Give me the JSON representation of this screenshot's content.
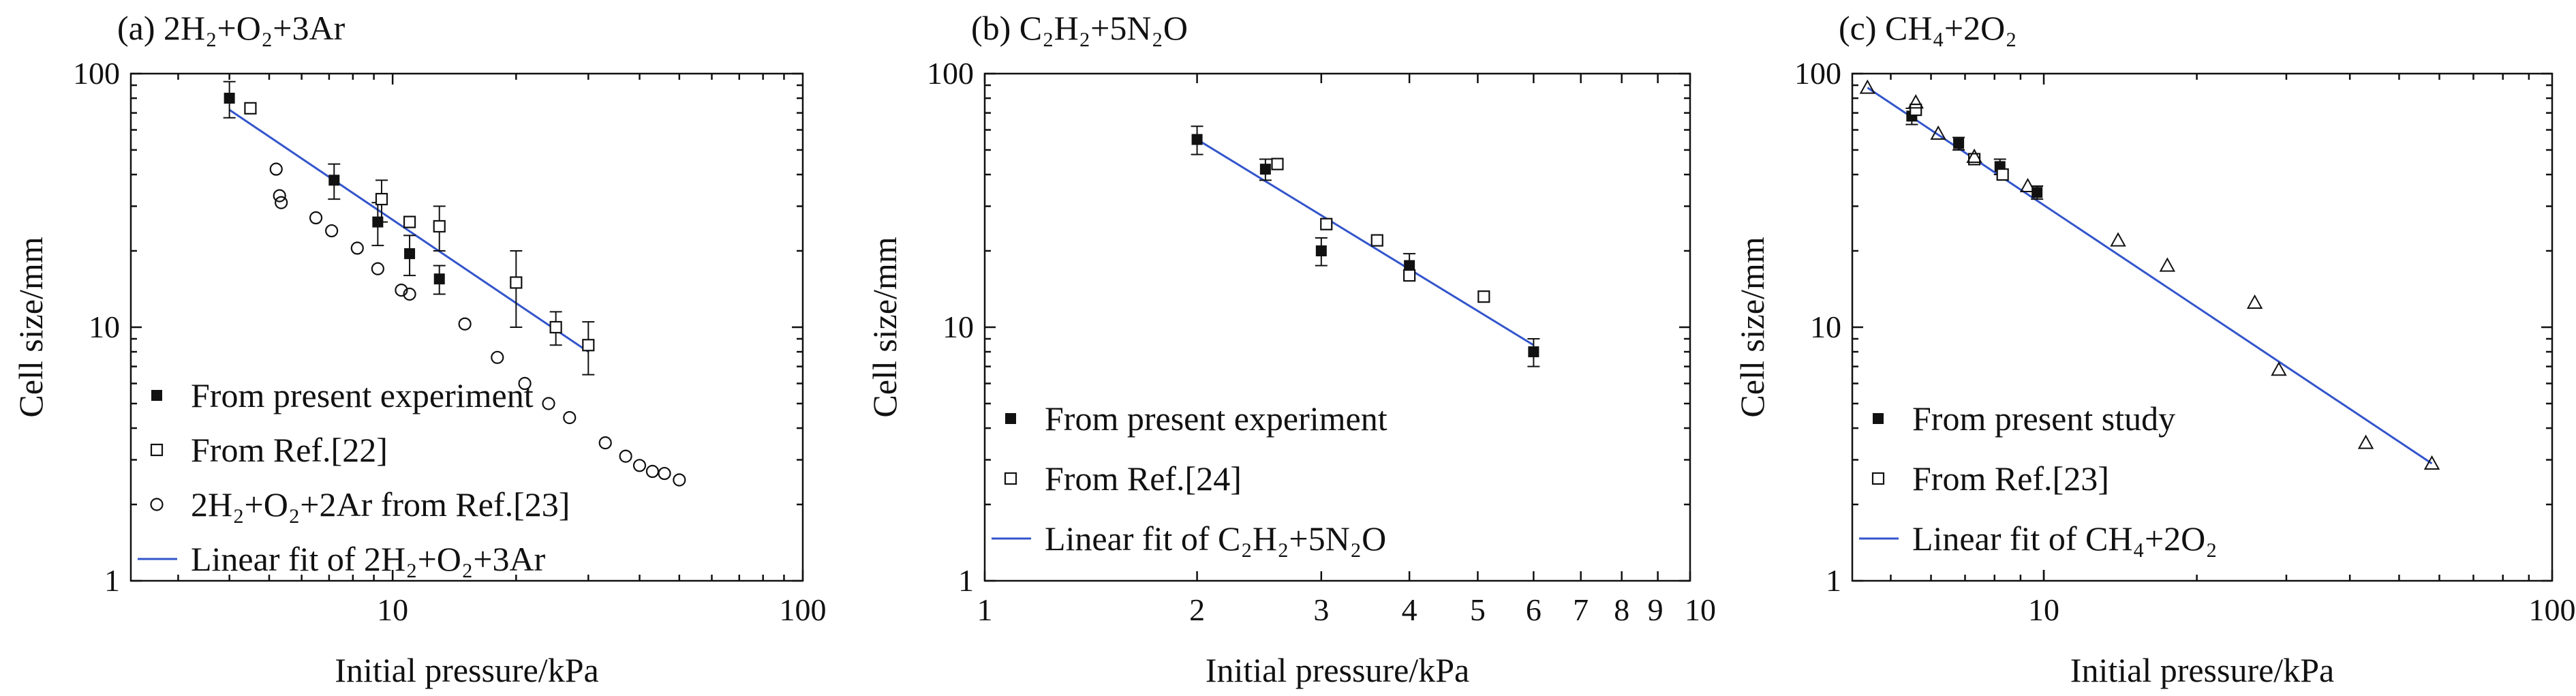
{
  "colors": {
    "fit_line": "#3355cc",
    "markers": "#111111"
  },
  "chart_data": [
    {
      "id": "a",
      "type": "scatter",
      "title": "(a) 2H₂+O₂+3Ar",
      "xlabel": "Initial pressure/kPa",
      "ylabel": "Cell size/mm",
      "xscale": "log",
      "yscale": "log",
      "xlim": [
        2.3,
        100
      ],
      "ylim": [
        1,
        100
      ],
      "x_ticks": [
        10,
        100
      ],
      "x_tick_labels": [
        "10",
        "100"
      ],
      "y_ticks": [
        1,
        10,
        100
      ],
      "y_tick_labels": [
        "1",
        "10",
        "100"
      ],
      "legend_position": "bottom-left",
      "series": [
        {
          "name": "From present experiment",
          "marker": "filled-square",
          "points": [
            {
              "x": 4,
              "y": 80,
              "err": 13
            },
            {
              "x": 7.2,
              "y": 38,
              "err": 6
            },
            {
              "x": 9.2,
              "y": 26,
              "err": 5
            },
            {
              "x": 11,
              "y": 19.5,
              "err": 3.5
            },
            {
              "x": 13,
              "y": 15.5,
              "err": 2
            }
          ]
        },
        {
          "name": "From Ref.[22]",
          "marker": "open-square",
          "points": [
            {
              "x": 4.5,
              "y": 73,
              "err": 0
            },
            {
              "x": 9.4,
              "y": 32,
              "err": 6
            },
            {
              "x": 11,
              "y": 26,
              "err": 0
            },
            {
              "x": 13,
              "y": 25,
              "err": 5
            },
            {
              "x": 20,
              "y": 15,
              "err": 5
            },
            {
              "x": 25,
              "y": 10,
              "err": 1.5
            },
            {
              "x": 30,
              "y": 8.5,
              "err": 2
            }
          ]
        },
        {
          "name": "2H₂+O₂+2Ar from Ref.[23]",
          "marker": "open-circle",
          "points": [
            {
              "x": 5.2,
              "y": 42
            },
            {
              "x": 5.3,
              "y": 33
            },
            {
              "x": 5.35,
              "y": 31
            },
            {
              "x": 6.5,
              "y": 27
            },
            {
              "x": 7.1,
              "y": 24
            },
            {
              "x": 8.2,
              "y": 20.5
            },
            {
              "x": 9.2,
              "y": 17
            },
            {
              "x": 10.5,
              "y": 14
            },
            {
              "x": 11,
              "y": 13.5
            },
            {
              "x": 15,
              "y": 10.3
            },
            {
              "x": 18,
              "y": 7.6
            },
            {
              "x": 21,
              "y": 6
            },
            {
              "x": 24,
              "y": 5
            },
            {
              "x": 27,
              "y": 4.4
            },
            {
              "x": 33,
              "y": 3.5
            },
            {
              "x": 37,
              "y": 3.1
            },
            {
              "x": 40,
              "y": 2.85
            },
            {
              "x": 43,
              "y": 2.7
            },
            {
              "x": 46,
              "y": 2.65
            },
            {
              "x": 50,
              "y": 2.5
            }
          ]
        }
      ],
      "fit": {
        "name": "Linear fit of 2H₂+O₂+3Ar",
        "x0": 4,
        "y0": 72,
        "x1": 30,
        "y1": 8
      }
    },
    {
      "id": "b",
      "type": "scatter",
      "title": "(b) C₂H₂+5N₂O",
      "xlabel": "Initial pressure/kPa",
      "ylabel": "Cell size/mm",
      "xscale": "log",
      "yscale": "log",
      "xlim": [
        1,
        10
      ],
      "ylim": [
        1,
        100
      ],
      "x_ticks": [
        1,
        2,
        3,
        4,
        5,
        6,
        7,
        8,
        9,
        10
      ],
      "x_tick_labels": [
        "1",
        "2",
        "3",
        "4",
        "5",
        "6",
        "7",
        "8",
        "9",
        "10"
      ],
      "y_ticks": [
        1,
        10,
        100
      ],
      "y_tick_labels": [
        "1",
        "10",
        "100"
      ],
      "legend_position": "bottom-left",
      "series": [
        {
          "name": "From present experiment",
          "marker": "filled-square",
          "points": [
            {
              "x": 2,
              "y": 55,
              "err": 7
            },
            {
              "x": 2.5,
              "y": 42,
              "err": 4
            },
            {
              "x": 3,
              "y": 20,
              "err": 2.5
            },
            {
              "x": 4,
              "y": 17.5,
              "err": 2
            },
            {
              "x": 6,
              "y": 8,
              "err": 1
            }
          ]
        },
        {
          "name": "From Ref.[24]",
          "marker": "open-square",
          "points": [
            {
              "x": 2.6,
              "y": 44,
              "err": 0
            },
            {
              "x": 3.05,
              "y": 25.5,
              "err": 0
            },
            {
              "x": 3.6,
              "y": 22,
              "err": 0
            },
            {
              "x": 4,
              "y": 16,
              "err": 0
            },
            {
              "x": 5.1,
              "y": 13.2,
              "err": 0
            }
          ]
        }
      ],
      "fit": {
        "name": "Linear fit of C₂H₂+5N₂O",
        "x0": 2,
        "y0": 55,
        "x1": 6,
        "y1": 8.5
      }
    },
    {
      "id": "c",
      "type": "scatter",
      "title": "(c) CH₄+2O₂",
      "xlabel": "Initial pressure/kPa",
      "ylabel": "Cell size/mm",
      "xscale": "log",
      "yscale": "log",
      "xlim": [
        4.2,
        100
      ],
      "ylim": [
        1,
        100
      ],
      "x_ticks": [
        10,
        100
      ],
      "x_tick_labels": [
        "10",
        "100"
      ],
      "y_ticks": [
        1,
        10,
        100
      ],
      "y_tick_labels": [
        "1",
        "10",
        "100"
      ],
      "legend_position": "bottom-left",
      "series": [
        {
          "name": "From present study",
          "marker": "filled-square",
          "points": [
            {
              "x": 5.5,
              "y": 68,
              "err": 5
            },
            {
              "x": 6.8,
              "y": 53,
              "err": 3
            },
            {
              "x": 8.2,
              "y": 43,
              "err": 3
            },
            {
              "x": 9.7,
              "y": 34,
              "err": 2
            }
          ]
        },
        {
          "name": "From Ref.[23]",
          "marker": "open-square",
          "points": [
            {
              "x": 5.6,
              "y": 72,
              "err": 0
            },
            {
              "x": 7.3,
              "y": 46,
              "err": 0
            },
            {
              "x": 8.3,
              "y": 40,
              "err": 0
            }
          ]
        },
        {
          "name": "",
          "marker": "open-triangle",
          "points": [
            {
              "x": 4.5,
              "y": 88
            },
            {
              "x": 5.6,
              "y": 77
            },
            {
              "x": 6.2,
              "y": 58
            },
            {
              "x": 7.3,
              "y": 47
            },
            {
              "x": 9.3,
              "y": 36
            },
            {
              "x": 14,
              "y": 22
            },
            {
              "x": 17.5,
              "y": 17.5
            },
            {
              "x": 26,
              "y": 12.5
            },
            {
              "x": 29,
              "y": 6.8
            },
            {
              "x": 43,
              "y": 3.5
            },
            {
              "x": 58,
              "y": 2.9
            }
          ]
        }
      ],
      "fit": {
        "name": "Linear fit of CH₄+2O₂",
        "x0": 4.5,
        "y0": 88,
        "x1": 58,
        "y1": 2.9
      }
    }
  ]
}
